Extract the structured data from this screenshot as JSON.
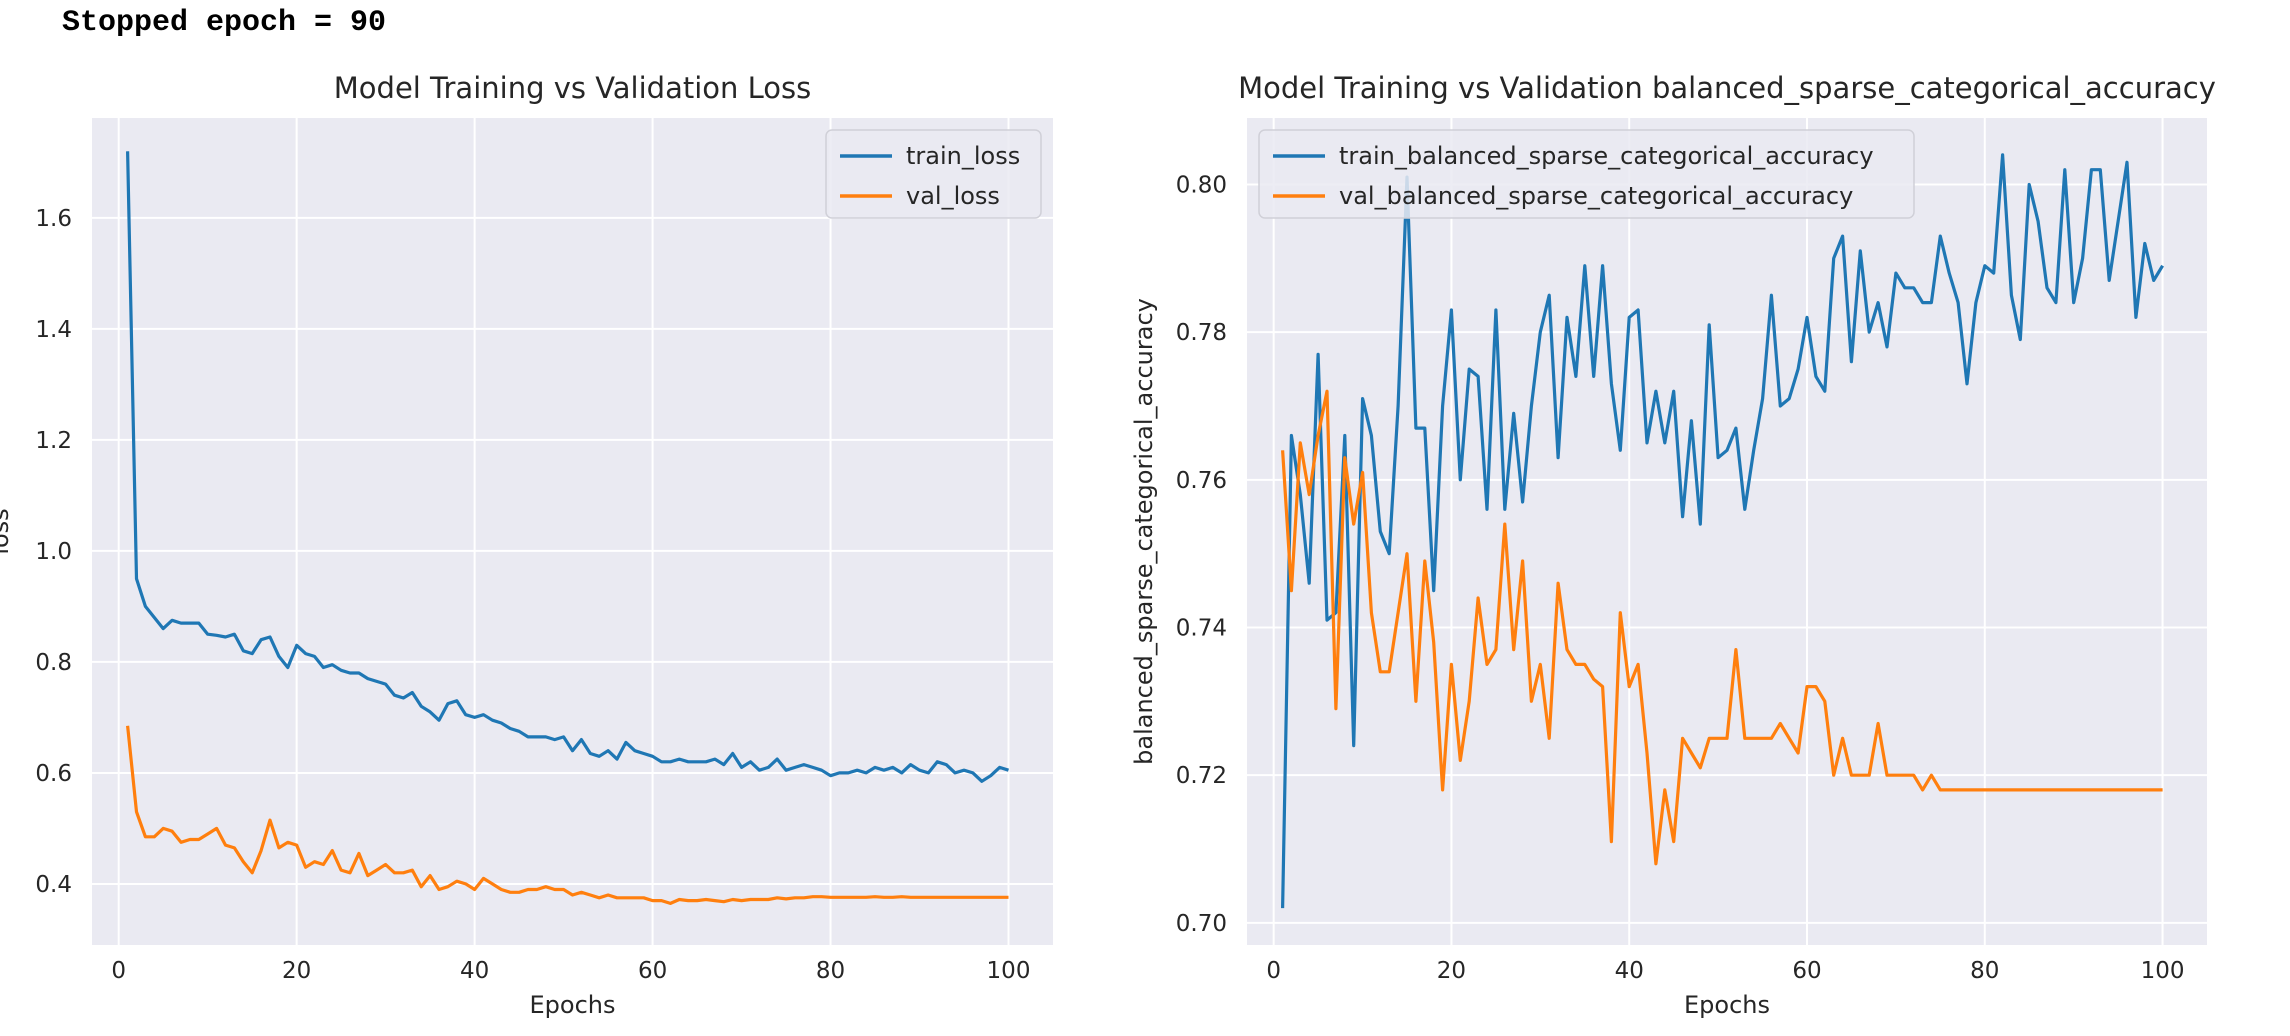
{
  "output": {
    "text": "Stopped epoch = 90"
  },
  "colors": {
    "train": "#1f77b4",
    "val": "#ff7f0e",
    "axes_bg": "#eaeaf2",
    "grid": "#ffffff"
  },
  "chart_data": [
    {
      "type": "line",
      "title": "Model Training vs Validation Loss",
      "xlabel": "Epochs",
      "ylabel": "loss",
      "xlim": [
        -3,
        105
      ],
      "ylim": [
        0.29,
        1.78
      ],
      "xticks": [
        0,
        20,
        40,
        60,
        80,
        100
      ],
      "yticks": [
        0.4,
        0.6,
        0.8,
        1.0,
        1.2,
        1.4,
        1.6
      ],
      "ytick_labels": [
        "0.4",
        "0.6",
        "0.8",
        "1.0",
        "1.2",
        "1.4",
        "1.6"
      ],
      "grid": true,
      "legend": "upper right",
      "series": [
        {
          "name": "train_loss",
          "color": "#1f77b4",
          "x": [
            1,
            2,
            3,
            4,
            5,
            6,
            7,
            8,
            9,
            10,
            11,
            12,
            13,
            14,
            15,
            16,
            17,
            18,
            19,
            20,
            21,
            22,
            23,
            24,
            25,
            26,
            27,
            28,
            29,
            30,
            31,
            32,
            33,
            34,
            35,
            36,
            37,
            38,
            39,
            40,
            41,
            42,
            43,
            44,
            45,
            46,
            47,
            48,
            49,
            50,
            51,
            52,
            53,
            54,
            55,
            56,
            57,
            58,
            59,
            60,
            61,
            62,
            63,
            64,
            65,
            66,
            67,
            68,
            69,
            70,
            71,
            72,
            73,
            74,
            75,
            76,
            77,
            78,
            79,
            80,
            81,
            82,
            83,
            84,
            85,
            86,
            87,
            88,
            89,
            90,
            91,
            92,
            93,
            94,
            95,
            96,
            97,
            98,
            99,
            100
          ],
          "y": [
            1.72,
            0.95,
            0.9,
            0.88,
            0.86,
            0.875,
            0.87,
            0.87,
            0.87,
            0.85,
            0.848,
            0.845,
            0.85,
            0.82,
            0.815,
            0.84,
            0.845,
            0.81,
            0.79,
            0.83,
            0.815,
            0.81,
            0.79,
            0.795,
            0.785,
            0.78,
            0.78,
            0.77,
            0.765,
            0.76,
            0.74,
            0.735,
            0.745,
            0.72,
            0.71,
            0.695,
            0.725,
            0.73,
            0.705,
            0.7,
            0.705,
            0.695,
            0.69,
            0.68,
            0.675,
            0.665,
            0.665,
            0.665,
            0.66,
            0.665,
            0.64,
            0.66,
            0.635,
            0.63,
            0.64,
            0.625,
            0.655,
            0.64,
            0.635,
            0.63,
            0.62,
            0.62,
            0.625,
            0.62,
            0.62,
            0.62,
            0.625,
            0.615,
            0.635,
            0.61,
            0.62,
            0.605,
            0.61,
            0.625,
            0.605,
            0.61,
            0.615,
            0.61,
            0.605,
            0.595,
            0.6,
            0.6,
            0.605,
            0.6,
            0.61,
            0.605,
            0.61,
            0.6,
            0.615,
            0.605,
            0.6,
            0.62,
            0.615,
            0.6,
            0.605,
            0.6,
            0.585,
            0.595,
            0.61,
            0.605
          ]
        },
        {
          "name": "val_loss",
          "color": "#ff7f0e",
          "x": [
            1,
            2,
            3,
            4,
            5,
            6,
            7,
            8,
            9,
            10,
            11,
            12,
            13,
            14,
            15,
            16,
            17,
            18,
            19,
            20,
            21,
            22,
            23,
            24,
            25,
            26,
            27,
            28,
            29,
            30,
            31,
            32,
            33,
            34,
            35,
            36,
            37,
            38,
            39,
            40,
            41,
            42,
            43,
            44,
            45,
            46,
            47,
            48,
            49,
            50,
            51,
            52,
            53,
            54,
            55,
            56,
            57,
            58,
            59,
            60,
            61,
            62,
            63,
            64,
            65,
            66,
            67,
            68,
            69,
            70,
            71,
            72,
            73,
            74,
            75,
            76,
            77,
            78,
            79,
            80,
            81,
            82,
            83,
            84,
            85,
            86,
            87,
            88,
            89,
            90,
            91,
            92,
            93,
            94,
            95,
            96,
            97,
            98,
            99,
            100
          ],
          "y": [
            0.685,
            0.53,
            0.485,
            0.485,
            0.5,
            0.495,
            0.475,
            0.48,
            0.48,
            0.49,
            0.5,
            0.47,
            0.465,
            0.44,
            0.42,
            0.46,
            0.515,
            0.465,
            0.475,
            0.47,
            0.43,
            0.44,
            0.435,
            0.46,
            0.425,
            0.42,
            0.455,
            0.415,
            0.425,
            0.435,
            0.42,
            0.42,
            0.425,
            0.395,
            0.415,
            0.39,
            0.395,
            0.405,
            0.4,
            0.39,
            0.41,
            0.4,
            0.39,
            0.385,
            0.385,
            0.39,
            0.39,
            0.395,
            0.39,
            0.39,
            0.38,
            0.385,
            0.38,
            0.375,
            0.38,
            0.375,
            0.375,
            0.375,
            0.375,
            0.37,
            0.37,
            0.365,
            0.372,
            0.37,
            0.37,
            0.372,
            0.37,
            0.368,
            0.372,
            0.37,
            0.372,
            0.372,
            0.372,
            0.375,
            0.373,
            0.375,
            0.375,
            0.377,
            0.377,
            0.376,
            0.376,
            0.376,
            0.376,
            0.376,
            0.377,
            0.376,
            0.376,
            0.377,
            0.376,
            0.376,
            0.376,
            0.376,
            0.376,
            0.376,
            0.376,
            0.376,
            0.376,
            0.376,
            0.376,
            0.376
          ]
        }
      ]
    },
    {
      "type": "line",
      "title": "Model Training vs Validation balanced_sparse_categorical_accuracy",
      "xlabel": "Epochs",
      "ylabel": "balanced_sparse_categorical_accuracy",
      "xlim": [
        -3,
        105
      ],
      "ylim": [
        0.697,
        0.809
      ],
      "xticks": [
        0,
        20,
        40,
        60,
        80,
        100
      ],
      "yticks": [
        0.7,
        0.72,
        0.74,
        0.76,
        0.78,
        0.8
      ],
      "ytick_labels": [
        "0.70",
        "0.72",
        "0.74",
        "0.76",
        "0.78",
        "0.80"
      ],
      "grid": true,
      "legend": "upper left",
      "series": [
        {
          "name": "train_balanced_sparse_categorical_accuracy",
          "color": "#1f77b4",
          "x": [
            1,
            2,
            3,
            4,
            5,
            6,
            7,
            8,
            9,
            10,
            11,
            12,
            13,
            14,
            15,
            16,
            17,
            18,
            19,
            20,
            21,
            22,
            23,
            24,
            25,
            26,
            27,
            28,
            29,
            30,
            31,
            32,
            33,
            34,
            35,
            36,
            37,
            38,
            39,
            40,
            41,
            42,
            43,
            44,
            45,
            46,
            47,
            48,
            49,
            50,
            51,
            52,
            53,
            54,
            55,
            56,
            57,
            58,
            59,
            60,
            61,
            62,
            63,
            64,
            65,
            66,
            67,
            68,
            69,
            70,
            71,
            72,
            73,
            74,
            75,
            76,
            77,
            78,
            79,
            80,
            81,
            82,
            83,
            84,
            85,
            86,
            87,
            88,
            89,
            90,
            91,
            92,
            93,
            94,
            95,
            96,
            97,
            98,
            99,
            100
          ],
          "y": [
            0.702,
            0.766,
            0.758,
            0.746,
            0.777,
            0.741,
            0.742,
            0.766,
            0.724,
            0.771,
            0.766,
            0.753,
            0.75,
            0.77,
            0.801,
            0.767,
            0.767,
            0.745,
            0.77,
            0.783,
            0.76,
            0.775,
            0.774,
            0.756,
            0.783,
            0.756,
            0.769,
            0.757,
            0.77,
            0.78,
            0.785,
            0.763,
            0.782,
            0.774,
            0.789,
            0.774,
            0.789,
            0.773,
            0.764,
            0.782,
            0.783,
            0.765,
            0.772,
            0.765,
            0.772,
            0.755,
            0.768,
            0.754,
            0.781,
            0.763,
            0.764,
            0.767,
            0.756,
            0.764,
            0.771,
            0.785,
            0.77,
            0.771,
            0.775,
            0.782,
            0.774,
            0.772,
            0.79,
            0.793,
            0.776,
            0.791,
            0.78,
            0.784,
            0.778,
            0.788,
            0.786,
            0.786,
            0.784,
            0.784,
            0.793,
            0.788,
            0.784,
            0.773,
            0.784,
            0.789,
            0.788,
            0.804,
            0.785,
            0.779,
            0.8,
            0.795,
            0.786,
            0.784,
            0.802,
            0.784,
            0.79,
            0.802,
            0.802,
            0.787,
            0.795,
            0.803,
            0.782,
            0.792,
            0.787,
            0.789
          ]
        },
        {
          "name": "val_balanced_sparse_categorical_accuracy",
          "color": "#ff7f0e",
          "x": [
            1,
            2,
            3,
            4,
            5,
            6,
            7,
            8,
            9,
            10,
            11,
            12,
            13,
            14,
            15,
            16,
            17,
            18,
            19,
            20,
            21,
            22,
            23,
            24,
            25,
            26,
            27,
            28,
            29,
            30,
            31,
            32,
            33,
            34,
            35,
            36,
            37,
            38,
            39,
            40,
            41,
            42,
            43,
            44,
            45,
            46,
            47,
            48,
            49,
            50,
            51,
            52,
            53,
            54,
            55,
            56,
            57,
            58,
            59,
            60,
            61,
            62,
            63,
            64,
            65,
            66,
            67,
            68,
            69,
            70,
            71,
            72,
            73,
            74,
            75,
            76,
            77,
            78,
            79,
            80,
            81,
            82,
            83,
            84,
            85,
            86,
            87,
            88,
            89,
            90,
            91,
            92,
            93,
            94,
            95,
            96,
            97,
            98,
            99,
            100
          ],
          "y": [
            0.764,
            0.745,
            0.765,
            0.758,
            0.766,
            0.772,
            0.729,
            0.763,
            0.754,
            0.761,
            0.742,
            0.734,
            0.734,
            0.742,
            0.75,
            0.73,
            0.749,
            0.738,
            0.718,
            0.735,
            0.722,
            0.73,
            0.744,
            0.735,
            0.737,
            0.754,
            0.737,
            0.749,
            0.73,
            0.735,
            0.725,
            0.746,
            0.737,
            0.735,
            0.735,
            0.733,
            0.732,
            0.711,
            0.742,
            0.732,
            0.735,
            0.723,
            0.708,
            0.718,
            0.711,
            0.725,
            0.723,
            0.721,
            0.725,
            0.725,
            0.725,
            0.737,
            0.725,
            0.725,
            0.725,
            0.725,
            0.727,
            0.725,
            0.723,
            0.732,
            0.732,
            0.73,
            0.72,
            0.725,
            0.72,
            0.72,
            0.72,
            0.727,
            0.72,
            0.72,
            0.72,
            0.72,
            0.718,
            0.72,
            0.718,
            0.718,
            0.718,
            0.718,
            0.718,
            0.718,
            0.718,
            0.718,
            0.718,
            0.718,
            0.718,
            0.718,
            0.718,
            0.718,
            0.718,
            0.718,
            0.718,
            0.718,
            0.718,
            0.718,
            0.718,
            0.718,
            0.718,
            0.718,
            0.718,
            0.718
          ]
        }
      ]
    }
  ]
}
